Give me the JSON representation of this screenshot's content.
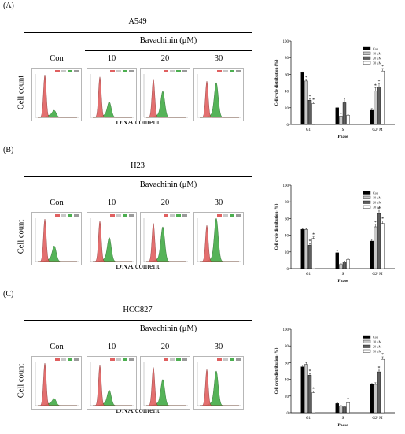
{
  "chart_data": [
    {
      "type": "bar",
      "panel_label": "(A)",
      "cell_line": "A549",
      "treatment_label": "Bavachinin (μM)",
      "conditions": [
        "Con",
        "10",
        "20",
        "30"
      ],
      "flow_ylabel": "Cell count",
      "flow_xlabel": "DNA content",
      "ylabel": "Cell cycle distribution (%)",
      "xlabel": "Phase",
      "ylim": [
        0,
        100
      ],
      "yticks": [
        0,
        20,
        40,
        60,
        80,
        100
      ],
      "categories": [
        "G1",
        "S",
        "G2/ M"
      ],
      "series": [
        {
          "name": "Con",
          "values": [
            62,
            20,
            17
          ]
        },
        {
          "name": "10 μM",
          "values": [
            52,
            10,
            40
          ]
        },
        {
          "name": "20 μM",
          "values": [
            29,
            26,
            45
          ]
        },
        {
          "name": "30 μM",
          "values": [
            25,
            11,
            64
          ]
        }
      ],
      "errors": [
        [
          1,
          2,
          2
        ],
        [
          2,
          3,
          4
        ],
        [
          2,
          5,
          4
        ],
        [
          2,
          1,
          3
        ]
      ],
      "significant": [
        [
          false,
          false,
          false
        ],
        [
          true,
          false,
          true
        ],
        [
          true,
          false,
          true
        ],
        [
          true,
          false,
          true
        ]
      ]
    },
    {
      "type": "bar",
      "panel_label": "(B)",
      "cell_line": "H23",
      "treatment_label": "Bavachinin (μM)",
      "conditions": [
        "Con",
        "10",
        "20",
        "30"
      ],
      "flow_ylabel": "Cell count",
      "flow_xlabel": "DNA content",
      "ylabel": "Cell cycle distribution (%)",
      "xlabel": "Phase",
      "ylim": [
        0,
        100
      ],
      "yticks": [
        0,
        20,
        40,
        60,
        80,
        100
      ],
      "categories": [
        "G1",
        "S",
        "G2/ M"
      ],
      "series": [
        {
          "name": "Con",
          "values": [
            47,
            19,
            33
          ]
        },
        {
          "name": "10 μM",
          "values": [
            47,
            5,
            50
          ]
        },
        {
          "name": "20 μM",
          "values": [
            28,
            8,
            66
          ]
        },
        {
          "name": "30 μM",
          "values": [
            36,
            11,
            54
          ]
        }
      ],
      "errors": [
        [
          1,
          2,
          2
        ],
        [
          1,
          1,
          3
        ],
        [
          2,
          1,
          3
        ],
        [
          2,
          1,
          3
        ]
      ],
      "significant": [
        [
          false,
          false,
          false
        ],
        [
          false,
          false,
          true
        ],
        [
          true,
          false,
          true
        ],
        [
          true,
          false,
          true
        ]
      ]
    },
    {
      "type": "bar",
      "panel_label": "(C)",
      "cell_line": "HCC827",
      "treatment_label": "Bavachinin (μM)",
      "conditions": [
        "Con",
        "10",
        "20",
        "30"
      ],
      "flow_ylabel": "Cell count",
      "flow_xlabel": "DNA content",
      "ylabel": "Cell cycle distribution (%)",
      "xlabel": "Phase",
      "ylim": [
        0,
        100
      ],
      "yticks": [
        0,
        20,
        40,
        60,
        80,
        100
      ],
      "categories": [
        "G1",
        "S",
        "G2/ M"
      ],
      "series": [
        {
          "name": "Con",
          "values": [
            55,
            11,
            34
          ]
        },
        {
          "name": "10 μM",
          "values": [
            58,
            8,
            34
          ]
        },
        {
          "name": "20 μM",
          "values": [
            45,
            7,
            49
          ]
        },
        {
          "name": "30 μM",
          "values": [
            24,
            12,
            64
          ]
        }
      ],
      "errors": [
        [
          2,
          1,
          1
        ],
        [
          2,
          1,
          2
        ],
        [
          2,
          1,
          2
        ],
        [
          2,
          1,
          3
        ]
      ],
      "significant": [
        [
          false,
          false,
          false
        ],
        [
          false,
          false,
          false
        ],
        [
          true,
          false,
          true
        ],
        [
          true,
          true,
          true
        ]
      ]
    }
  ],
  "colors": {
    "series": [
      "#000000",
      "#c8c8c8",
      "#5e5e5e",
      "#ffffff"
    ],
    "hist_red": "#e06060",
    "hist_green": "#4caf50"
  }
}
